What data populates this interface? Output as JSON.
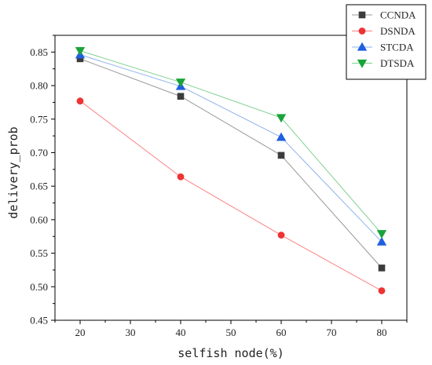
{
  "chart_data": {
    "type": "line",
    "xlabel": "selfish node(%)",
    "ylabel": "delivery_prob",
    "x": [
      20,
      40,
      60,
      80
    ],
    "xlim": [
      15,
      85
    ],
    "ylim": [
      0.45,
      0.875
    ],
    "xticks": [
      "20",
      "30",
      "40",
      "50",
      "60",
      "70",
      "80"
    ],
    "yticks": [
      "0.45",
      "0.50",
      "0.55",
      "0.60",
      "0.65",
      "0.70",
      "0.75",
      "0.80",
      "0.85"
    ],
    "grid": false,
    "legend_position": "top-right",
    "series": [
      {
        "name": "CCNDA",
        "values": [
          0.84,
          0.784,
          0.696,
          0.528
        ],
        "color": "#999999",
        "marker_color": "#3c3c3c",
        "marker": "square"
      },
      {
        "name": "DSNDA",
        "values": [
          0.777,
          0.664,
          0.577,
          0.494
        ],
        "color": "#ff8080",
        "marker_color": "#ee3333",
        "marker": "circle"
      },
      {
        "name": "STCDA",
        "values": [
          0.846,
          0.799,
          0.723,
          0.567
        ],
        "color": "#8fb2ee",
        "marker_color": "#1f5fe0",
        "marker": "triangle-up"
      },
      {
        "name": "DTSDA",
        "values": [
          0.852,
          0.805,
          0.752,
          0.579
        ],
        "color": "#7fd08f",
        "marker_color": "#1aa33a",
        "marker": "triangle-down"
      }
    ]
  }
}
